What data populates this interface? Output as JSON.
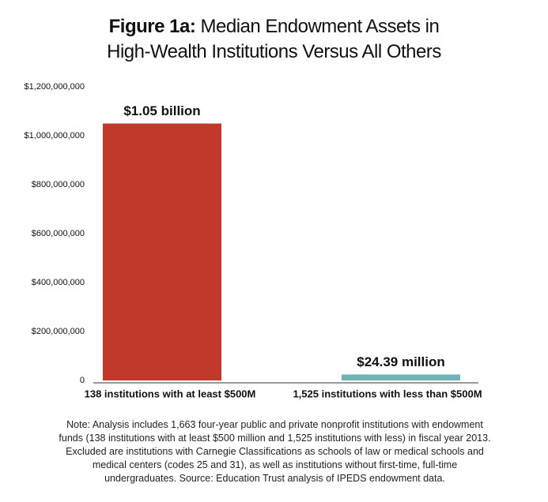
{
  "chart_data": {
    "type": "bar",
    "title_prefix": "Figure 1a:",
    "title": "Median Endowment Assets in\nHigh-Wealth Institutions Versus All Others",
    "categories": [
      "138 institutions with at least $500M",
      "1,525 institutions with less than $500M"
    ],
    "values": [
      1050000000,
      24390000
    ],
    "value_labels": [
      "$1.05 billion",
      "$24.39 million"
    ],
    "colors": [
      "#c0392b",
      "#6fb3b6"
    ],
    "ylim": [
      0,
      1200000000
    ],
    "yticks": [
      0,
      {
        "value": 200000000,
        "label": "$200,000,000"
      },
      {
        "value": 400000000,
        "label": "$400,000,000"
      },
      {
        "value": 600000000,
        "label": "$600,000,000"
      },
      {
        "value": 800000000,
        "label": "$800,000,000"
      },
      {
        "value": 1000000000,
        "label": "$1,000,000,000"
      },
      {
        "value": 1200000000,
        "label": "$1,200,000,000"
      }
    ],
    "grid": false,
    "note": "Note: Analysis includes 1,663 four-year public and private nonprofit institutions with endowment funds (138 institutions with at least $500 million and 1,525 institutions with less) in fiscal year 2013. Excluded are institutions with Carnegie Classifications as schools of law or medical schools and medical centers (codes 25 and 31), as well as institutions without first-time, full-time undergraduates.  Source: Education Trust analysis of IPEDS endowment data."
  }
}
